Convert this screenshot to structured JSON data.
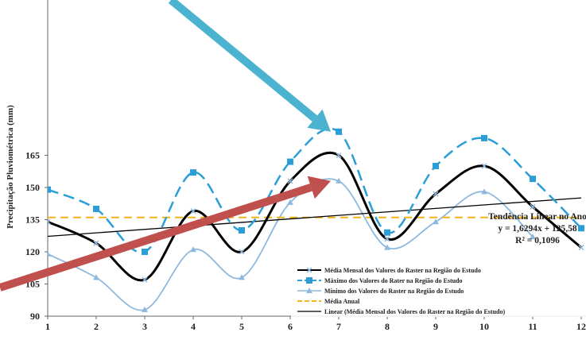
{
  "chart_data": {
    "type": "line",
    "title": "",
    "xlabel": "",
    "ylabel": "Precipitação Pluviométrica (mm)",
    "x": [
      1,
      2,
      3,
      4,
      5,
      6,
      7,
      8,
      9,
      10,
      11,
      12
    ],
    "ylim": [
      90,
      175
    ],
    "y_ticks": [
      90,
      105,
      120,
      135,
      150,
      165
    ],
    "grid": false,
    "legend_position": "bottom-right",
    "series": [
      {
        "name": "Média Mensal dos Valores do Raster na Região do Estudo",
        "color": "#000000",
        "style": "solid",
        "marker": "x",
        "values": [
          134,
          124,
          107,
          139,
          120,
          153,
          165,
          126,
          147,
          160,
          141,
          122
        ]
      },
      {
        "name": "Máximo dos Valores do Rater na Região do Estudo",
        "color": "#2b9ed8",
        "style": "dashed",
        "marker": "square",
        "values": [
          149,
          140,
          120,
          157,
          130,
          162,
          176,
          129,
          160,
          173,
          154,
          131
        ]
      },
      {
        "name": "Mínimo dos Valores do Raster na Região do Estudo",
        "color": "#8fb8de",
        "style": "solid",
        "marker": "triangle",
        "values": [
          119,
          108,
          93,
          121,
          108,
          143,
          153,
          122,
          134,
          148,
          127,
          null
        ]
      },
      {
        "name": "Média Anual",
        "color": "#f2b51e",
        "style": "dashed",
        "marker": "none",
        "values": [
          136,
          136,
          136,
          136,
          136,
          136,
          136,
          136,
          136,
          136,
          136,
          136
        ]
      },
      {
        "name": "Linear (Média Mensal dos Valores do Raster na Região do Estudo)",
        "color": "#000000",
        "style": "solid-thin",
        "marker": "none",
        "slope": 1.6294,
        "intercept": 125.58
      }
    ],
    "annotation": {
      "title": "Tendência Linear no Ano",
      "equation": "y = 1,6294x + 125,58",
      "r2": "R² = 0,1096"
    }
  },
  "arrows": [
    {
      "color": "#4bb3cf",
      "target_x": 7,
      "target_y": 176
    },
    {
      "color": "#c0504d",
      "target_x": 7,
      "target_y": 153
    }
  ]
}
